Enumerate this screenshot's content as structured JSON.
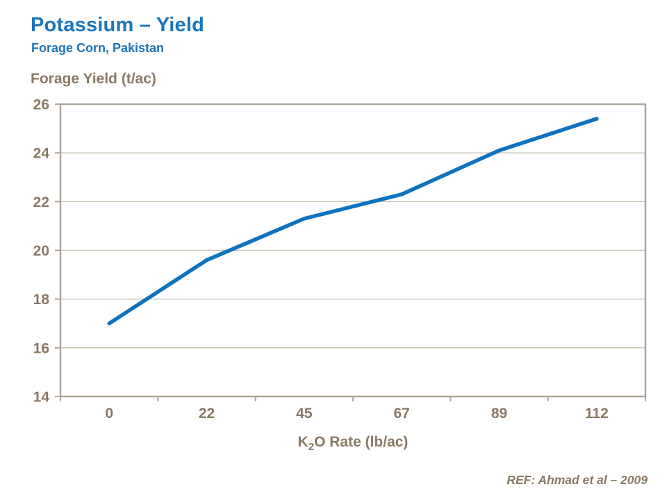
{
  "page": {
    "title": "Potassium – Yield",
    "subtitle": "Forage Corn, Pakistan",
    "ref": "REF:  Ahmad et al – 2009"
  },
  "colors": {
    "title_blue": "#1B75BC",
    "line_blue": "#0E72BE",
    "label_taupe": "#8A7963",
    "gridline": "#C9BFB1",
    "frame": "#AFA499"
  },
  "chart_data": {
    "type": "line",
    "title": "Potassium – Yield",
    "subtitle": "Forage Corn, Pakistan",
    "series_name": "Forage Yield",
    "categories": [
      "0",
      "22",
      "45",
      "67",
      "89",
      "112"
    ],
    "values": [
      17.0,
      19.6,
      21.3,
      22.3,
      24.1,
      25.4
    ],
    "xlabel": "K2O Rate (lb/ac)",
    "xlabel_parts": {
      "lead": "K",
      "sub": "2",
      "rest": "O Rate (lb/ac)"
    },
    "ylabel": "Forage Yield (t/ac)",
    "yticks": [
      14,
      16,
      18,
      20,
      22,
      24,
      26
    ],
    "ylim": [
      14,
      26
    ],
    "grid": "horizontal",
    "legend": "none"
  }
}
